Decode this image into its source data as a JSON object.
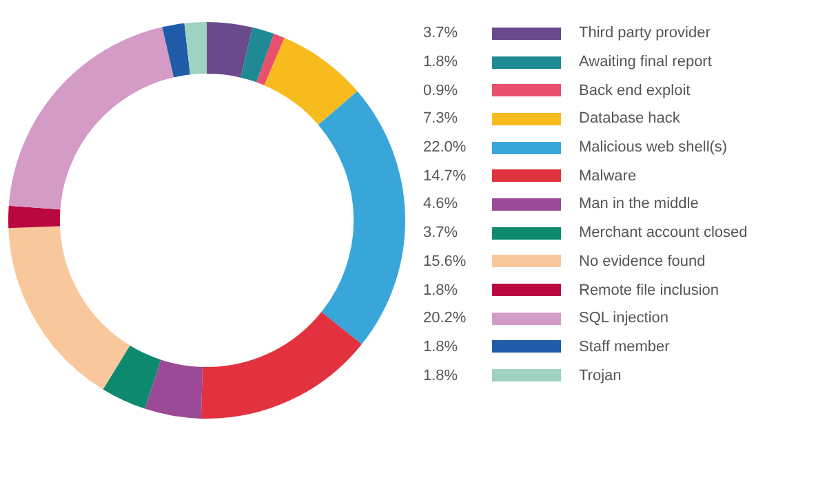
{
  "chart_data": {
    "type": "donut",
    "categories": [
      "Third party provider",
      "Awaiting final report",
      "Back end exploit",
      "Database hack",
      "Malicious web shell(s)",
      "Malware",
      "Man in the middle",
      "Merchant account closed",
      "No evidence found",
      "Remote file inclusion",
      "SQL injection",
      "Staff member",
      "Trojan"
    ],
    "values": [
      3.7,
      1.8,
      0.9,
      7.3,
      22.0,
      14.7,
      4.6,
      3.7,
      15.6,
      1.8,
      20.2,
      1.8,
      1.8
    ],
    "value_labels": [
      "3.7%",
      "1.8%",
      "0.9%",
      "7.3%",
      "22.0%",
      "14.7%",
      "4.6%",
      "3.7%",
      "15.6%",
      "1.8%",
      "20.2%",
      "1.8%",
      "1.8%"
    ],
    "colors": [
      "#6a4a8c",
      "#1f8a94",
      "#e8506e",
      "#f8bb1e",
      "#39a6da",
      "#e2323f",
      "#9b4a97",
      "#0d8a6e",
      "#f8c89c",
      "#b8083f",
      "#d49bc6",
      "#1f5ba8",
      "#9fd3c0"
    ],
    "legend": "right"
  }
}
